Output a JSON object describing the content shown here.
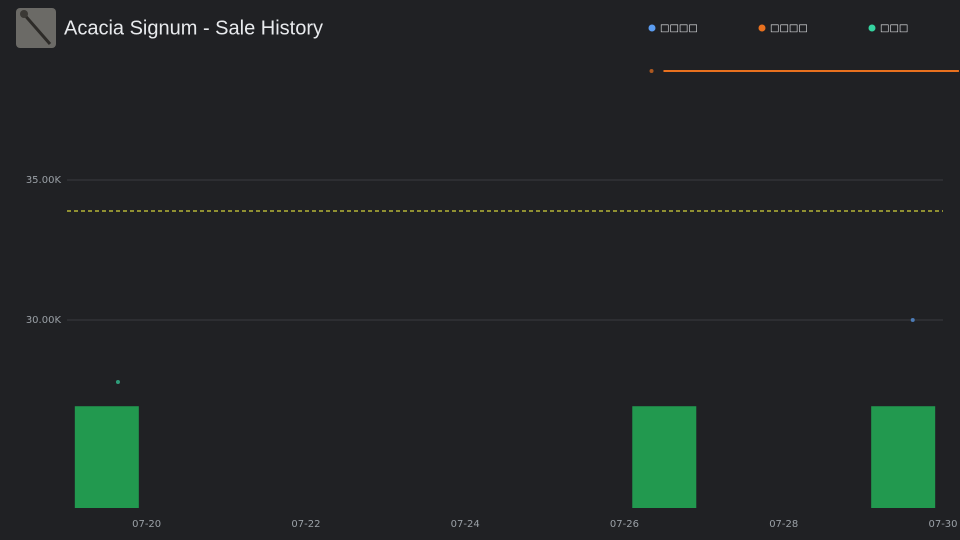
{
  "chart_data": {
    "type": "scatter",
    "title": "Acacia Signum - Sale History",
    "xlim": [
      19,
      30.2
    ],
    "xticks": [
      {
        "value": 20,
        "label": "07-20"
      },
      {
        "value": 22,
        "label": "07-22"
      },
      {
        "value": 24,
        "label": "07-24"
      },
      {
        "value": 26,
        "label": "07-26"
      },
      {
        "value": 28,
        "label": "07-28"
      },
      {
        "value": 30,
        "label": "07-30"
      }
    ],
    "ylim": [
      23286,
      39643
    ],
    "yticks": [
      {
        "value": 30000,
        "label": "30.00K"
      },
      {
        "value": 35000,
        "label": "35.00K"
      }
    ],
    "y2lim": [
      0,
      4.5
    ],
    "grid": true,
    "series": [
      {
        "name": "□□□□",
        "color": "#5b9cf0",
        "mode": "markers",
        "x": [
          29.62
        ],
        "values": [
          30000
        ]
      },
      {
        "name": "□□□□",
        "color": "#e8711f",
        "mode": "lines",
        "x": [
          26.34,
          26.42,
          26.49,
          30.2
        ],
        "values": [
          38893,
          null,
          38893,
          38893
        ]
      },
      {
        "name": "□□□",
        "color": "#35d3a0",
        "mode": "markers",
        "x": [
          19.64
        ],
        "values": [
          27786
        ]
      }
    ],
    "bars": {
      "color": "#22994f",
      "axis": "y2",
      "x": [
        19.5,
        26.5,
        29.5
      ],
      "values": [
        1,
        1,
        1
      ]
    },
    "reference_line": {
      "color": "#d4d43a",
      "value": 33893
    }
  }
}
